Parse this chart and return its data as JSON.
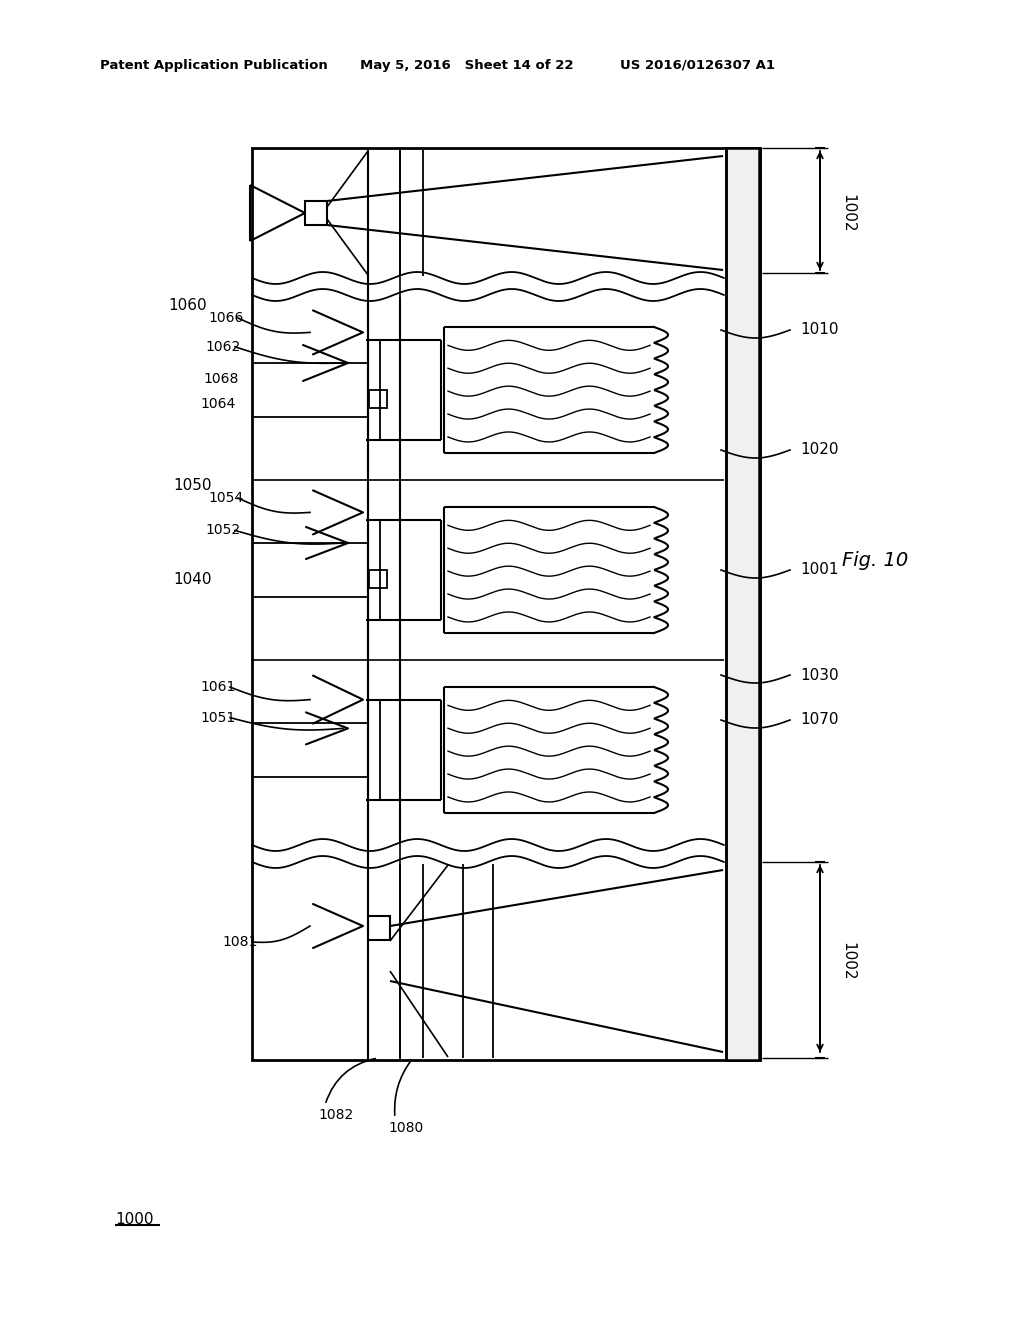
{
  "bg_color": "#ffffff",
  "line_color": "#000000",
  "header_left": "Patent Application Publication",
  "header_mid": "May 5, 2016   Sheet 14 of 22",
  "header_right": "US 2016/0126307 A1",
  "fig_label": "Fig. 10",
  "label_1000": "1000",
  "label_1001": "1001",
  "label_1002_top": "1002",
  "label_1002_bot": "1002",
  "label_1010": "1010",
  "label_1020": "1020",
  "label_1030": "1030",
  "label_1040": "1040",
  "label_1050": "1050",
  "label_1051": "1051",
  "label_1052": "1052",
  "label_1054": "1054",
  "label_1060": "1060",
  "label_1061": "1061",
  "label_1062": "1062",
  "label_1064": "1064",
  "label_1066": "1066",
  "label_1068": "1068",
  "label_1070": "1070",
  "label_1080": "1080",
  "label_1081": "1081",
  "label_1082": "1082"
}
